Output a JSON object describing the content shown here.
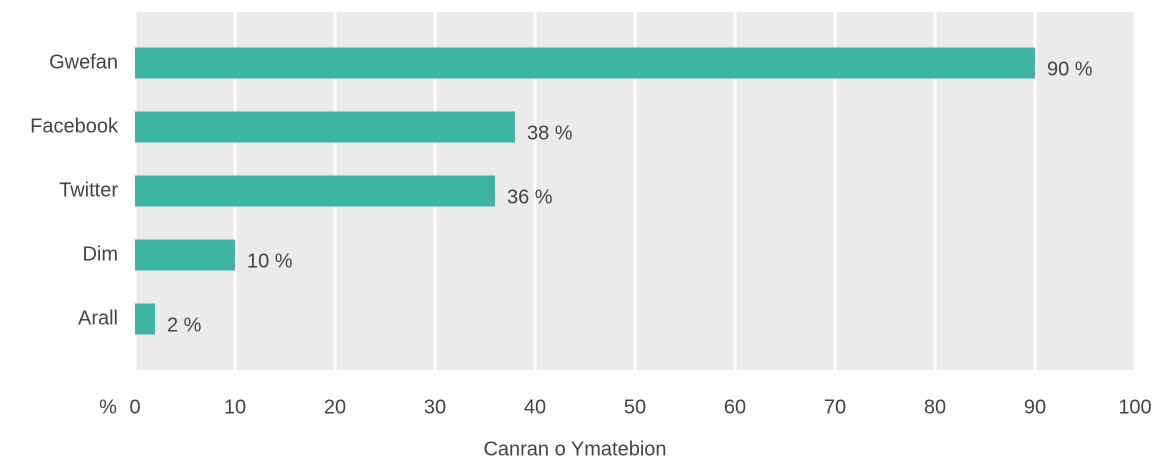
{
  "chart_data": {
    "type": "bar",
    "orientation": "horizontal",
    "categories": [
      "Gwefan",
      "Facebook",
      "Twitter",
      "Dim",
      "Arall"
    ],
    "values": [
      90,
      38,
      36,
      10,
      2
    ],
    "value_labels": [
      "90 %",
      "38 %",
      "36 %",
      "10 %",
      "2 %"
    ],
    "color": "#3db6a1",
    "xlim": [
      0,
      100
    ],
    "xticks": [
      0,
      10,
      20,
      30,
      40,
      50,
      60,
      70,
      80,
      90,
      100
    ],
    "x_unit_label": "%",
    "xlabel": "Canran o Ymatebion",
    "grid": true
  }
}
